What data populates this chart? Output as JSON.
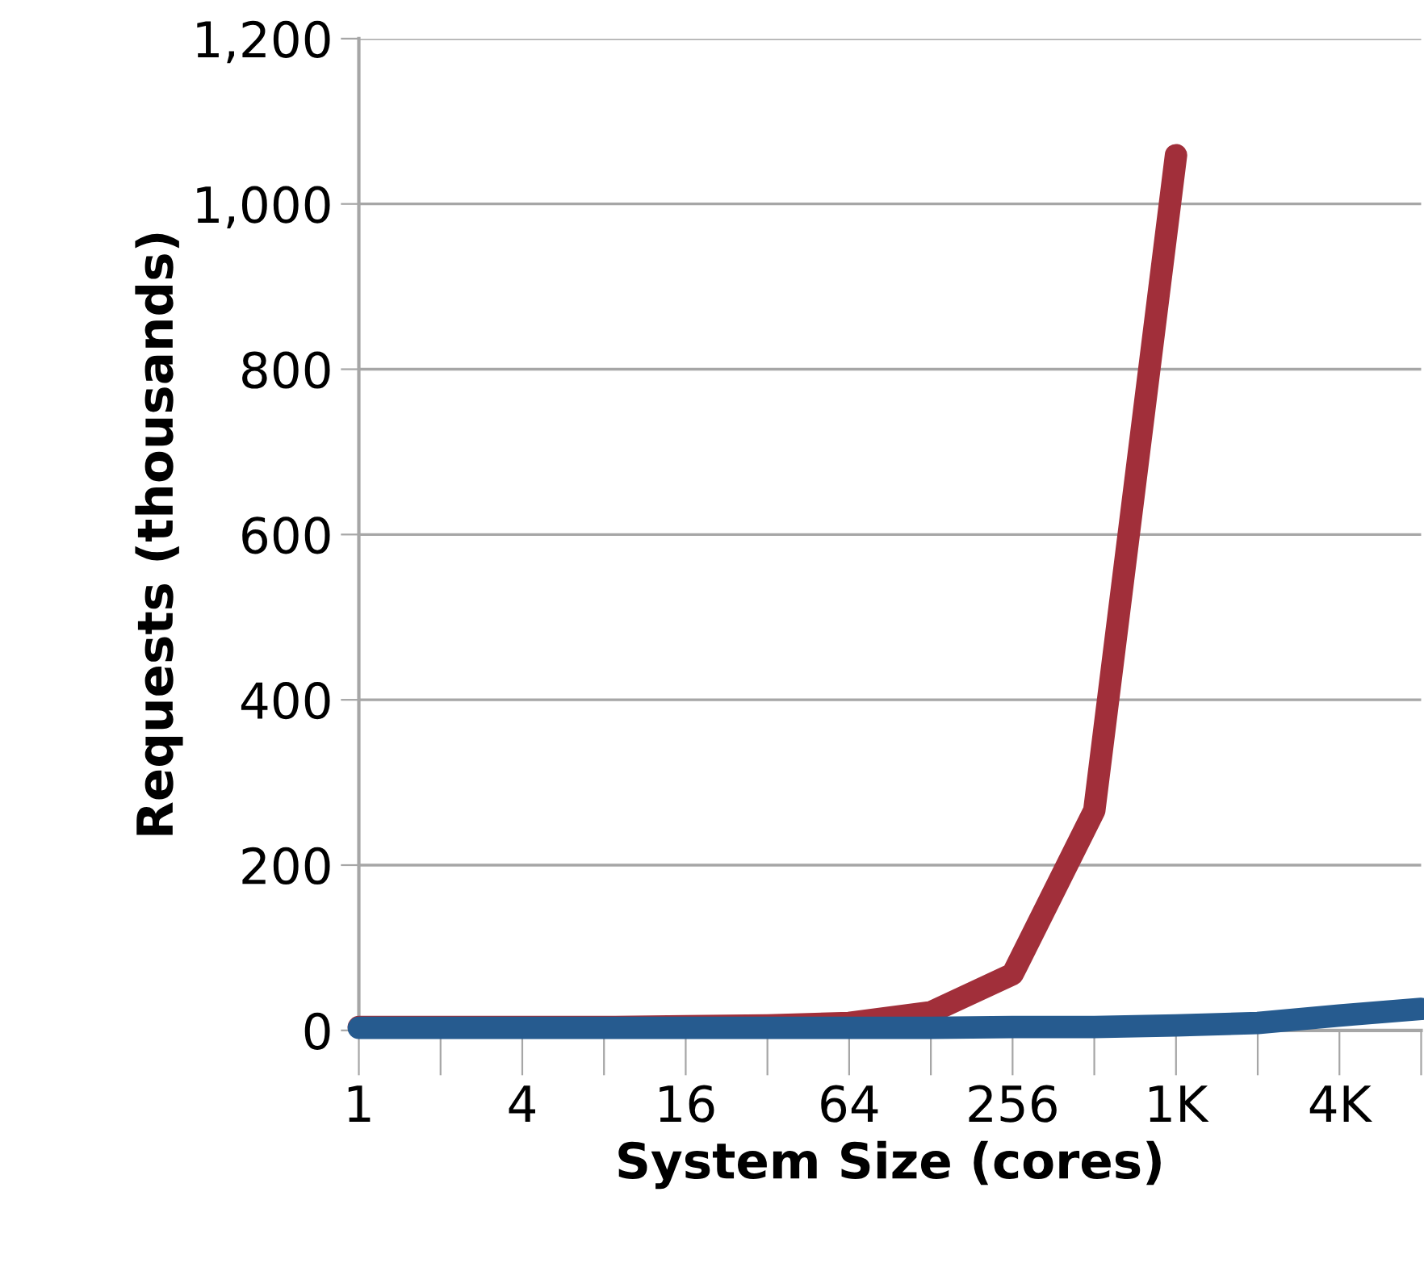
{
  "chart_data": {
    "type": "line",
    "xlabel": "System Size (cores)",
    "ylabel": "Requests (thousands)",
    "categories": [
      "1",
      null,
      "4",
      null,
      "16",
      null,
      "64",
      null,
      "256",
      null,
      "1K",
      null,
      "4K",
      null
    ],
    "series": [
      {
        "color": "#a12f3a",
        "values": [
          4,
          4,
          4,
          4,
          5,
          6,
          9,
          22,
          68,
          266,
          1059,
          null,
          null,
          null
        ]
      },
      {
        "color": "#265b8f",
        "values": [
          3,
          3,
          3,
          3,
          3,
          3,
          3,
          3,
          4,
          4,
          6,
          9,
          18,
          26
        ]
      }
    ],
    "ylim": [
      0,
      1200
    ],
    "yticks": [
      {
        "value": 0,
        "label": "0"
      },
      {
        "value": 200,
        "label": "200"
      },
      {
        "value": 400,
        "label": "400"
      },
      {
        "value": 600,
        "label": "600"
      },
      {
        "value": 800,
        "label": "800"
      },
      {
        "value": 1000,
        "label": "1,000"
      },
      {
        "value": 1200,
        "label": "1,200"
      }
    ],
    "grid": "y",
    "line_style": "solid"
  }
}
